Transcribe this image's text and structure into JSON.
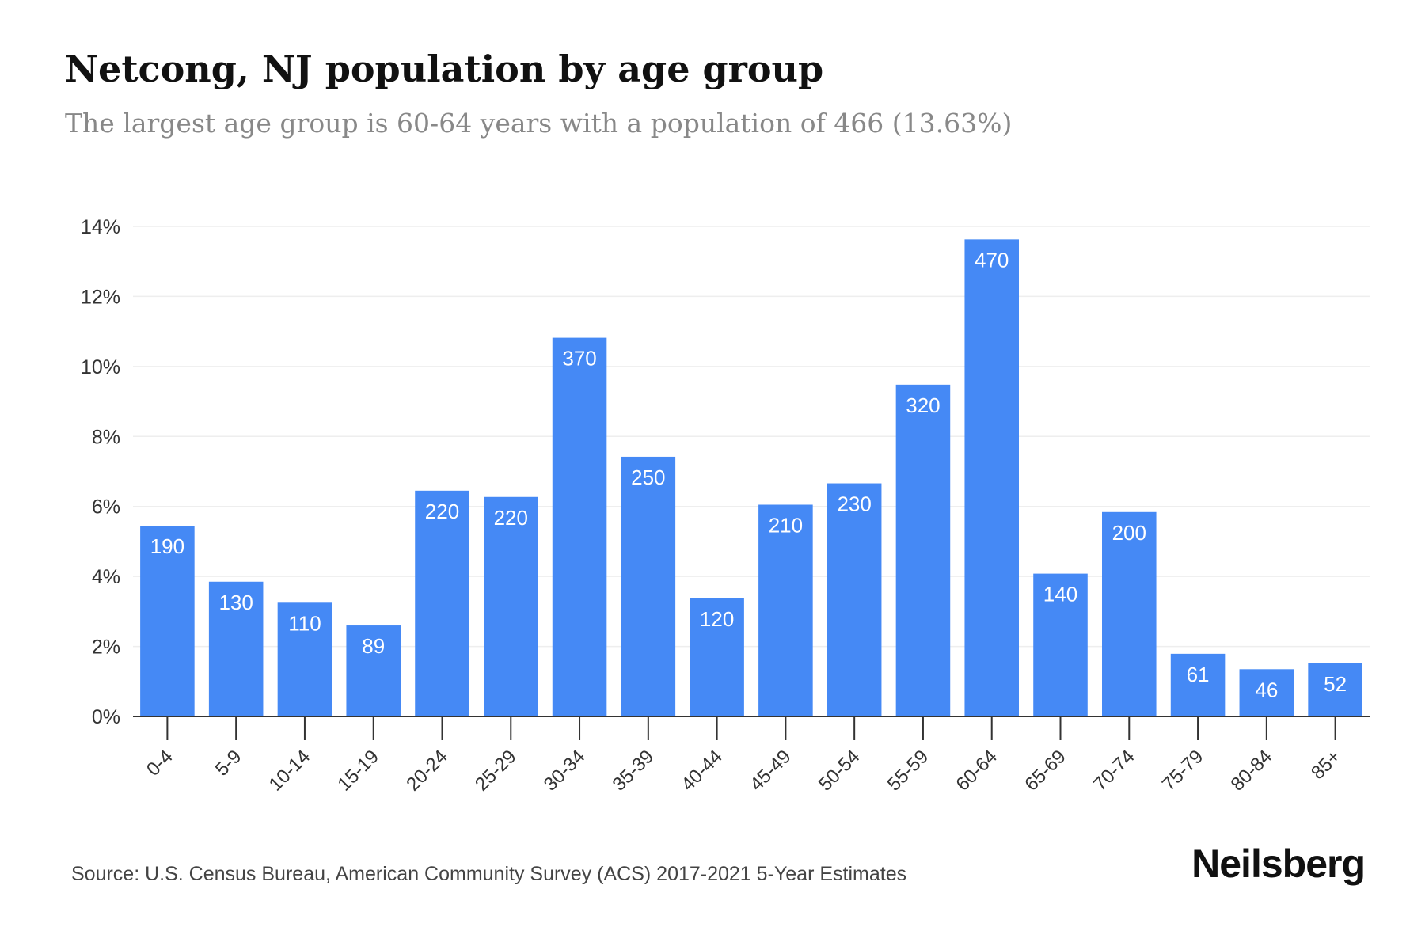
{
  "title": "Netcong, NJ population by age group",
  "subtitle": "The largest age group is 60-64 years with a population of 466 (13.63%)",
  "source": "Source: U.S. Census Bureau, American Community Survey (ACS) 2017-2021 5-Year Estimates",
  "brand": "Neilsberg",
  "colors": {
    "bar": "#4589f5",
    "label": "#ffffff",
    "grid": "#eeeeee",
    "axis": "#333333",
    "tick_text": "#333333"
  },
  "chart_data": {
    "type": "bar",
    "categories": [
      "0-4",
      "5-9",
      "10-14",
      "15-19",
      "20-24",
      "25-29",
      "30-34",
      "35-39",
      "40-44",
      "45-49",
      "50-54",
      "55-59",
      "60-64",
      "65-69",
      "70-74",
      "75-79",
      "80-84",
      "85+"
    ],
    "values": [
      5.45,
      3.85,
      3.25,
      2.6,
      6.45,
      6.27,
      10.82,
      7.42,
      3.37,
      6.05,
      6.66,
      9.48,
      13.63,
      4.08,
      5.84,
      1.79,
      1.35,
      1.52
    ],
    "data_labels": [
      "190",
      "130",
      "110",
      "89",
      "220",
      "220",
      "370",
      "250",
      "120",
      "210",
      "230",
      "320",
      "470",
      "140",
      "200",
      "61",
      "46",
      "52"
    ],
    "ylim": [
      0,
      14
    ],
    "yticks": [
      0,
      2,
      4,
      6,
      8,
      10,
      12,
      14
    ],
    "ytick_labels": [
      "0%",
      "2%",
      "4%",
      "6%",
      "8%",
      "10%",
      "12%",
      "14%"
    ],
    "xlabel": "",
    "ylabel": "",
    "grid": true,
    "legend": "none"
  }
}
